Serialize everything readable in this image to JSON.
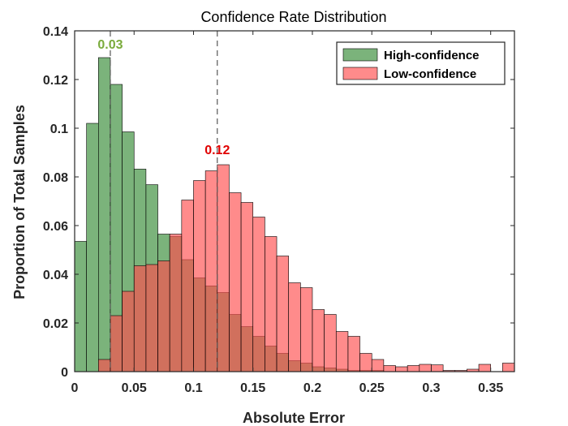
{
  "chart_data": {
    "type": "bar",
    "title": "Confidence Rate Distribution",
    "xlabel": "Absolute Error",
    "ylabel": "Proportion of Total Samples",
    "xlim": [
      0,
      0.37
    ],
    "ylim": [
      0,
      0.14
    ],
    "bin_width": 0.01,
    "xticks": [
      0,
      0.05,
      0.1,
      0.15,
      0.2,
      0.25,
      0.3,
      0.35
    ],
    "xtick_labels": [
      "0",
      "0.05",
      "0.1",
      "0.15",
      "0.2",
      "0.25",
      "0.3",
      "0.35"
    ],
    "yticks": [
      0,
      0.02,
      0.04,
      0.06,
      0.08,
      0.1,
      0.12,
      0.14
    ],
    "ytick_labels": [
      "0",
      "0.02",
      "0.04",
      "0.06",
      "0.08",
      "0.1",
      "0.12",
      "0.14"
    ],
    "grid": false,
    "legend_position": "top-right",
    "bin_centers": [
      0.005,
      0.015,
      0.025,
      0.035,
      0.045,
      0.055,
      0.065,
      0.075,
      0.085,
      0.095,
      0.105,
      0.115,
      0.125,
      0.135,
      0.145,
      0.155,
      0.165,
      0.175,
      0.185,
      0.195,
      0.205,
      0.215,
      0.225,
      0.235,
      0.245,
      0.255,
      0.265,
      0.275,
      0.285,
      0.295,
      0.305,
      0.315,
      0.325,
      0.335,
      0.345,
      0.355,
      0.365
    ],
    "series": [
      {
        "name": "High-confidence",
        "color": "#5aa05a",
        "values": [
          0.0535,
          0.102,
          0.129,
          0.118,
          0.0985,
          0.0832,
          0.0768,
          0.0565,
          0.0555,
          0.046,
          0.0385,
          0.0352,
          0.0325,
          0.0235,
          0.0185,
          0.0145,
          0.0105,
          0.0075,
          0.0045,
          0.0035,
          0.002,
          0.0015,
          0.001,
          0.0005,
          0.0005,
          0.0005,
          0,
          0,
          0,
          0,
          0,
          0,
          0,
          0,
          0,
          0,
          0
        ]
      },
      {
        "name": "Low-confidence",
        "color": "#ff4d4d",
        "values": [
          0,
          0,
          0.005,
          0.023,
          0.033,
          0.0435,
          0.044,
          0.0455,
          0.0565,
          0.0705,
          0.0785,
          0.0825,
          0.085,
          0.0735,
          0.0695,
          0.0635,
          0.0555,
          0.0475,
          0.0365,
          0.0345,
          0.0255,
          0.0235,
          0.0165,
          0.0145,
          0.0075,
          0.005,
          0.0025,
          0.002,
          0.0025,
          0.003,
          0.0028,
          0.0005,
          0.0005,
          0.001,
          0.003,
          0,
          0.0035
        ]
      }
    ],
    "reference_lines": [
      {
        "x": 0.03,
        "label": "0.03",
        "color": "#7aab3c"
      },
      {
        "x": 0.12,
        "label": "0.12",
        "color": "#e00000"
      }
    ]
  }
}
